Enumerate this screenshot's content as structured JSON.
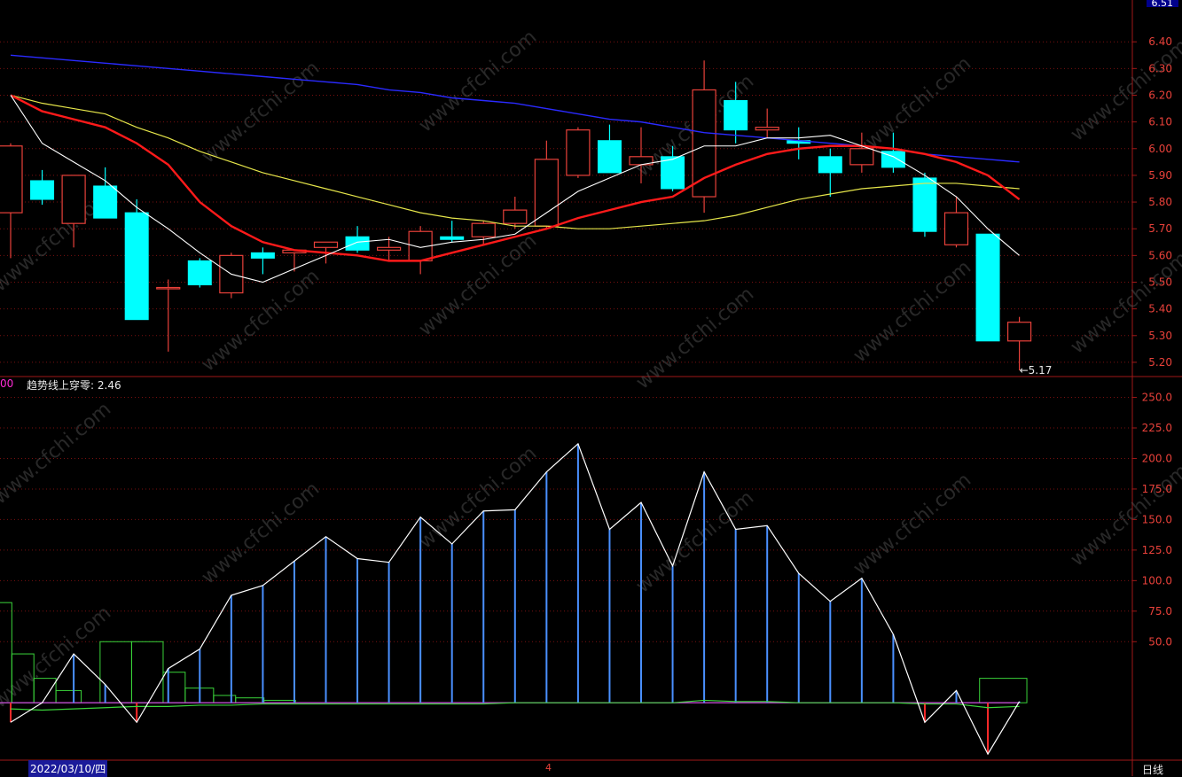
{
  "header": {
    "price_flag": "6.51"
  },
  "indicator": {
    "left_tag": "00",
    "label": "趋势线上穿零:",
    "value": "2.46"
  },
  "footer": {
    "date": "2022/03/10/四",
    "marker": "4",
    "period": "日线"
  },
  "watermark": "www.cfchi.com",
  "colors": {
    "up": "#e8413a",
    "down": "#00ffff",
    "ma_white": "#ffffff",
    "ma_red": "#ff1a1a",
    "ma_yellow": "#e6e64a",
    "ma_blue": "#2a2aff",
    "grid": "#7a1010",
    "ind_white": "#ffffff",
    "ind_blue": "#4a90ff",
    "ind_green": "#3ad43a",
    "ind_red": "#ff2a2a"
  },
  "chart_data": [
    {
      "type": "candlestick",
      "y_ticks": [
        6.4,
        6.3,
        6.2,
        6.1,
        6.0,
        5.9,
        5.8,
        5.7,
        5.6,
        5.5,
        5.4,
        5.3,
        5.2
      ],
      "ylim": [
        5.15,
        6.53
      ],
      "min_annotation": "5.17",
      "candles": [
        {
          "o": 5.76,
          "h": 6.02,
          "l": 5.59,
          "c": 6.01
        },
        {
          "o": 5.88,
          "h": 5.92,
          "l": 5.79,
          "c": 5.81
        },
        {
          "o": 5.72,
          "h": 5.9,
          "l": 5.63,
          "c": 5.9
        },
        {
          "o": 5.86,
          "h": 5.93,
          "l": 5.75,
          "c": 5.74
        },
        {
          "o": 5.76,
          "h": 5.81,
          "l": 5.36,
          "c": 5.36
        },
        {
          "o": 5.48,
          "h": 5.51,
          "l": 5.24,
          "c": 5.48
        },
        {
          "o": 5.58,
          "h": 5.59,
          "l": 5.48,
          "c": 5.49
        },
        {
          "o": 5.46,
          "h": 5.61,
          "l": 5.44,
          "c": 5.6
        },
        {
          "o": 5.61,
          "h": 5.63,
          "l": 5.53,
          "c": 5.59
        },
        {
          "o": 5.61,
          "h": 5.62,
          "l": 5.54,
          "c": 5.62
        },
        {
          "o": 5.63,
          "h": 5.65,
          "l": 5.57,
          "c": 5.65
        },
        {
          "o": 5.67,
          "h": 5.71,
          "l": 5.61,
          "c": 5.62
        },
        {
          "o": 5.62,
          "h": 5.67,
          "l": 5.58,
          "c": 5.63
        },
        {
          "o": 5.58,
          "h": 5.71,
          "l": 5.53,
          "c": 5.69
        },
        {
          "o": 5.67,
          "h": 5.73,
          "l": 5.65,
          "c": 5.66
        },
        {
          "o": 5.67,
          "h": 5.73,
          "l": 5.64,
          "c": 5.72
        },
        {
          "o": 5.72,
          "h": 5.82,
          "l": 5.7,
          "c": 5.77
        },
        {
          "o": 5.71,
          "h": 6.03,
          "l": 5.7,
          "c": 5.96
        },
        {
          "o": 5.9,
          "h": 6.08,
          "l": 5.89,
          "c": 6.07
        },
        {
          "o": 6.03,
          "h": 6.09,
          "l": 5.91,
          "c": 5.91
        },
        {
          "o": 5.94,
          "h": 6.08,
          "l": 5.87,
          "c": 5.97
        },
        {
          "o": 5.97,
          "h": 6.01,
          "l": 5.84,
          "c": 5.85
        },
        {
          "o": 5.82,
          "h": 6.33,
          "l": 5.76,
          "c": 6.22
        },
        {
          "o": 6.18,
          "h": 6.25,
          "l": 6.02,
          "c": 6.07
        },
        {
          "o": 6.07,
          "h": 6.15,
          "l": 6.04,
          "c": 6.08
        },
        {
          "o": 6.03,
          "h": 6.08,
          "l": 5.96,
          "c": 6.02
        },
        {
          "o": 5.97,
          "h": 6.0,
          "l": 5.82,
          "c": 5.91
        },
        {
          "o": 5.94,
          "h": 6.06,
          "l": 5.91,
          "c": 6.0
        },
        {
          "o": 5.99,
          "h": 6.06,
          "l": 5.91,
          "c": 5.93
        },
        {
          "o": 5.89,
          "h": 5.91,
          "l": 5.67,
          "c": 5.69
        },
        {
          "o": 5.64,
          "h": 5.82,
          "l": 5.63,
          "c": 5.76
        },
        {
          "o": 5.68,
          "h": 5.68,
          "l": 5.28,
          "c": 5.28
        },
        {
          "o": 5.28,
          "h": 5.37,
          "l": 5.17,
          "c": 5.35
        }
      ],
      "ma_white": [
        6.2,
        6.02,
        5.95,
        5.88,
        5.78,
        5.7,
        5.61,
        5.53,
        5.5,
        5.55,
        5.6,
        5.65,
        5.66,
        5.63,
        5.65,
        5.66,
        5.68,
        5.76,
        5.84,
        5.89,
        5.94,
        5.96,
        6.01,
        6.01,
        6.04,
        6.04,
        6.05,
        6.01,
        5.97,
        5.9,
        5.82,
        5.7,
        5.6
      ],
      "ma_red": [
        6.2,
        6.14,
        6.11,
        6.08,
        6.02,
        5.94,
        5.8,
        5.71,
        5.65,
        5.62,
        5.61,
        5.6,
        5.58,
        5.58,
        5.61,
        5.64,
        5.67,
        5.7,
        5.74,
        5.77,
        5.8,
        5.82,
        5.89,
        5.94,
        5.98,
        6.0,
        6.01,
        6.01,
        6.0,
        5.98,
        5.95,
        5.9,
        5.81
      ],
      "ma_yellow": [
        6.2,
        6.17,
        6.15,
        6.13,
        6.08,
        6.04,
        5.99,
        5.95,
        5.91,
        5.88,
        5.85,
        5.82,
        5.79,
        5.76,
        5.74,
        5.73,
        5.71,
        5.71,
        5.7,
        5.7,
        5.71,
        5.72,
        5.73,
        5.75,
        5.78,
        5.81,
        5.83,
        5.85,
        5.86,
        5.87,
        5.87,
        5.86,
        5.85
      ],
      "ma_blue": [
        6.35,
        6.34,
        6.33,
        6.32,
        6.31,
        6.3,
        6.29,
        6.28,
        6.27,
        6.26,
        6.25,
        6.24,
        6.22,
        6.21,
        6.19,
        6.18,
        6.17,
        6.15,
        6.13,
        6.11,
        6.1,
        6.08,
        6.06,
        6.05,
        6.04,
        6.03,
        6.02,
        6.01,
        6.0,
        5.98,
        5.97,
        5.96,
        5.95
      ]
    },
    {
      "type": "indicator",
      "y_ticks": [
        250.0,
        225.0,
        200.0,
        175.0,
        150.0,
        125.0,
        100.0,
        75.0,
        50.0
      ],
      "ylim": [
        -47,
        262
      ],
      "trend_line": [
        -16,
        0,
        40,
        15,
        -16,
        28,
        44,
        88,
        96,
        116,
        136,
        118,
        115,
        152,
        130,
        157,
        158,
        189,
        212,
        142,
        164,
        112,
        189,
        142,
        145,
        106,
        83,
        102,
        56,
        -16,
        10,
        -42,
        1
      ],
      "zero_line": [
        -5,
        -6,
        -5,
        -4,
        -3,
        -3,
        -2,
        -2,
        -1,
        -1,
        -1,
        -1,
        -1,
        -1,
        -1,
        -1,
        0,
        0,
        0,
        0,
        0,
        0,
        2,
        1,
        1,
        0,
        0,
        0,
        0,
        -1,
        -1,
        -4,
        -3
      ],
      "boxes": [
        {
          "from": 0,
          "to": 0.6,
          "v": 82
        },
        {
          "from": 0.6,
          "to": 1.3,
          "v": 40
        },
        {
          "from": 1.3,
          "to": 2.0,
          "v": 20
        },
        {
          "from": 2.0,
          "to": 2.8,
          "v": 10
        },
        {
          "from": 3.4,
          "to": 4.4,
          "v": 50
        },
        {
          "from": 4.4,
          "to": 5.4,
          "v": 50
        },
        {
          "from": 5.4,
          "to": 6.1,
          "v": 25
        },
        {
          "from": 6.1,
          "to": 7.0,
          "v": 12
        },
        {
          "from": 7.0,
          "to": 7.7,
          "v": 6
        },
        {
          "from": 7.7,
          "to": 8.6,
          "v": 4
        },
        {
          "from": 8.6,
          "to": 9.6,
          "v": 2
        },
        {
          "from": 31.3,
          "to": 32.8,
          "v": 20
        }
      ]
    }
  ]
}
